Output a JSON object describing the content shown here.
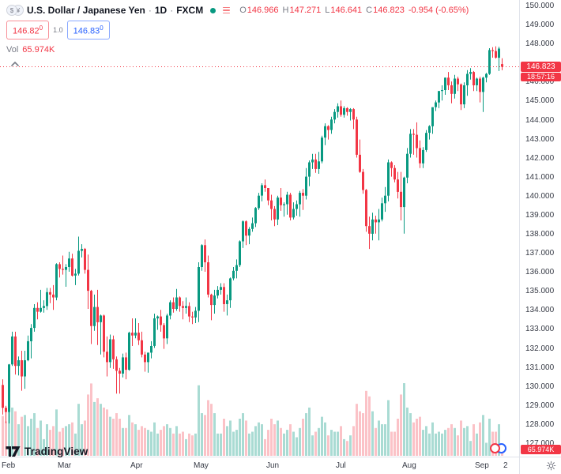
{
  "header": {
    "symbol_title": "U.S. Dollar / Japanese Yen",
    "sep1": "·",
    "timeframe": "1D",
    "sep2": "·",
    "exchange": "FXCM",
    "o_label": "O",
    "o_value": "146.966",
    "h_label": "H",
    "h_value": "147.271",
    "l_label": "L",
    "l_value": "146.641",
    "c_label": "C",
    "c_value": "146.823",
    "change": "-0.954 (-0.65%)",
    "bid": "146.82",
    "bid_sup": "0",
    "spread": "1.0",
    "ask": "146.83",
    "ask_sup": "0",
    "vol_label": "Vol",
    "vol_value": "65.974K"
  },
  "price_scale": {
    "last_price_label": "146.823",
    "countdown": "18:57:16",
    "volume_label": "65.974K"
  },
  "footer": {
    "brand": "TradingView",
    "right_edge_label": "2"
  },
  "colors": {
    "up": "#089981",
    "down": "#f23645",
    "vol_up": "rgba(8,153,129,0.35)",
    "vol_down": "rgba(242,54,69,0.30)",
    "accent_blue": "#2962ff",
    "axis_line": "#e0e3eb"
  },
  "chart_data": {
    "type": "candlestick",
    "title": "U.S. Dollar / Japanese Yen",
    "timeframe": "1D",
    "exchange": "FXCM",
    "grid": false,
    "legend_position": "top-left",
    "y_axis": {
      "min": 127,
      "max": 150,
      "step": 1,
      "tick_format": "x.000"
    },
    "x_ticks": [
      {
        "i": 0,
        "label": "Feb"
      },
      {
        "i": 20,
        "label": "Mar"
      },
      {
        "i": 43,
        "label": "Apr"
      },
      {
        "i": 63,
        "label": "May"
      },
      {
        "i": 86,
        "label": "Jun"
      },
      {
        "i": 108,
        "label": "Jul"
      },
      {
        "i": 129,
        "label": "Aug"
      },
      {
        "i": 152,
        "label": "Sep"
      },
      {
        "i": 161,
        "label": "2"
      }
    ],
    "last_price": 146.823,
    "prev_close": 147.777,
    "current_volume_k": 65.974,
    "ohlc_current": {
      "o": 146.966,
      "h": 147.271,
      "l": 146.641,
      "c": 146.823,
      "change": -0.954,
      "change_pct": -0.65
    },
    "candle_format": [
      "open",
      "high",
      "low",
      "close",
      "volume_k"
    ],
    "candles": [
      [
        130.1,
        130.4,
        128.55,
        128.9,
        215
      ],
      [
        128.9,
        129.0,
        128.1,
        128.68,
        185
      ],
      [
        128.68,
        131.2,
        128.08,
        131.18,
        340
      ],
      [
        131.18,
        132.9,
        131.1,
        132.65,
        260
      ],
      [
        132.65,
        132.9,
        130.65,
        131.1,
        240
      ],
      [
        131.1,
        131.6,
        130.6,
        131.4,
        170
      ],
      [
        131.4,
        131.9,
        129.8,
        130.55,
        210
      ],
      [
        130.55,
        131.9,
        129.9,
        131.4,
        220
      ],
      [
        131.4,
        132.7,
        131.35,
        132.4,
        160
      ],
      [
        132.4,
        133.3,
        131.5,
        133.1,
        200
      ],
      [
        133.1,
        134.35,
        132.9,
        134.15,
        230
      ],
      [
        134.15,
        134.45,
        133.55,
        133.95,
        150
      ],
      [
        133.95,
        135.1,
        133.9,
        134.15,
        190
      ],
      [
        134.15,
        134.55,
        133.9,
        134.25,
        90
      ],
      [
        134.25,
        135.2,
        134.05,
        134.98,
        170
      ],
      [
        134.98,
        135.2,
        134.4,
        134.85,
        140
      ],
      [
        134.85,
        135.35,
        134.05,
        134.7,
        160
      ],
      [
        134.7,
        136.5,
        134.55,
        136.45,
        250
      ],
      [
        136.45,
        136.55,
        135.75,
        136.2,
        130
      ],
      [
        136.2,
        136.9,
        135.9,
        136.15,
        150
      ],
      [
        136.15,
        136.45,
        135.26,
        136.3,
        160
      ],
      [
        136.3,
        137.1,
        136.05,
        136.75,
        170
      ],
      [
        136.75,
        137.0,
        135.8,
        135.85,
        180
      ],
      [
        135.85,
        136.2,
        135.35,
        135.95,
        120
      ],
      [
        135.95,
        137.9,
        135.85,
        137.15,
        280
      ],
      [
        137.15,
        137.5,
        136.8,
        137.25,
        170
      ],
      [
        137.25,
        137.3,
        135.95,
        136.15,
        190
      ],
      [
        136.15,
        136.95,
        134.1,
        135.05,
        330
      ],
      [
        135.05,
        135.1,
        132.25,
        133.2,
        390
      ],
      [
        133.2,
        134.85,
        132.95,
        134.2,
        290
      ],
      [
        134.2,
        135.1,
        132.2,
        133.4,
        310
      ],
      [
        133.4,
        133.8,
        131.7,
        133.75,
        280
      ],
      [
        133.75,
        133.8,
        131.55,
        131.85,
        260
      ],
      [
        131.85,
        132.65,
        130.55,
        131.3,
        250
      ],
      [
        131.3,
        132.75,
        131.0,
        132.5,
        210
      ],
      [
        132.5,
        132.7,
        130.95,
        131.45,
        200
      ],
      [
        131.45,
        131.6,
        129.65,
        130.85,
        230
      ],
      [
        130.85,
        131.0,
        129.65,
        130.7,
        200
      ],
      [
        130.7,
        131.75,
        130.5,
        131.55,
        150
      ],
      [
        131.55,
        131.8,
        130.4,
        130.9,
        150
      ],
      [
        130.9,
        132.9,
        130.85,
        132.85,
        220
      ],
      [
        132.85,
        133.6,
        132.15,
        132.7,
        180
      ],
      [
        132.7,
        133.6,
        132.55,
        132.85,
        170
      ],
      [
        132.85,
        133.35,
        132.2,
        132.45,
        140
      ],
      [
        132.45,
        132.9,
        131.55,
        131.7,
        160
      ],
      [
        131.7,
        131.85,
        130.8,
        131.3,
        150
      ],
      [
        131.3,
        131.8,
        130.75,
        131.8,
        140
      ],
      [
        131.8,
        132.4,
        131.5,
        132.15,
        130
      ],
      [
        132.15,
        133.85,
        132.05,
        133.6,
        180
      ],
      [
        133.6,
        133.75,
        133.0,
        133.7,
        120
      ],
      [
        133.7,
        134.05,
        132.9,
        133.25,
        140
      ],
      [
        133.25,
        133.35,
        132.0,
        132.55,
        160
      ],
      [
        132.55,
        133.85,
        132.25,
        133.75,
        170
      ],
      [
        133.75,
        134.55,
        133.55,
        134.45,
        150
      ],
      [
        134.45,
        134.7,
        133.9,
        134.1,
        120
      ],
      [
        134.1,
        135.15,
        134.0,
        134.7,
        160
      ],
      [
        134.7,
        134.75,
        133.95,
        134.25,
        120
      ],
      [
        134.25,
        134.5,
        133.55,
        134.15,
        130
      ],
      [
        134.15,
        134.7,
        133.85,
        134.25,
        90
      ],
      [
        134.25,
        134.45,
        133.4,
        133.7,
        120
      ],
      [
        133.7,
        133.95,
        133.3,
        133.65,
        110
      ],
      [
        133.65,
        134.2,
        133.35,
        134.0,
        120
      ],
      [
        134.0,
        136.55,
        133.4,
        136.3,
        380
      ],
      [
        136.3,
        137.5,
        136.1,
        137.45,
        230
      ],
      [
        137.45,
        137.75,
        136.05,
        136.55,
        220
      ],
      [
        136.55,
        136.9,
        134.7,
        134.85,
        300
      ],
      [
        134.85,
        134.9,
        133.5,
        134.3,
        280
      ],
      [
        134.3,
        135.1,
        133.85,
        134.8,
        230
      ],
      [
        134.8,
        135.3,
        134.65,
        135.1,
        120
      ],
      [
        135.1,
        135.45,
        134.85,
        135.25,
        120
      ],
      [
        135.25,
        135.45,
        133.95,
        134.35,
        200
      ],
      [
        134.35,
        134.85,
        133.75,
        134.55,
        160
      ],
      [
        134.55,
        135.75,
        134.15,
        135.7,
        190
      ],
      [
        135.7,
        136.3,
        135.6,
        136.1,
        130
      ],
      [
        136.1,
        136.7,
        135.7,
        136.4,
        140
      ],
      [
        136.4,
        137.7,
        136.3,
        137.65,
        200
      ],
      [
        137.65,
        138.75,
        137.3,
        138.7,
        230
      ],
      [
        138.7,
        138.75,
        137.45,
        137.95,
        190
      ],
      [
        137.95,
        138.4,
        137.5,
        138.3,
        120
      ],
      [
        138.3,
        138.9,
        138.15,
        138.6,
        130
      ],
      [
        138.6,
        139.45,
        138.4,
        139.4,
        160
      ],
      [
        139.4,
        140.2,
        139.3,
        140.05,
        180
      ],
      [
        140.05,
        140.7,
        139.75,
        140.6,
        170
      ],
      [
        140.6,
        140.9,
        140.25,
        140.45,
        90
      ],
      [
        140.45,
        140.45,
        139.55,
        139.8,
        140
      ],
      [
        139.8,
        140.1,
        138.75,
        139.35,
        200
      ],
      [
        139.35,
        139.5,
        138.45,
        138.8,
        170
      ],
      [
        138.8,
        140.05,
        138.5,
        139.95,
        190
      ],
      [
        139.95,
        140.45,
        139.25,
        139.55,
        150
      ],
      [
        139.55,
        139.7,
        138.95,
        139.6,
        120
      ],
      [
        139.6,
        140.25,
        139.05,
        140.1,
        140
      ],
      [
        140.1,
        140.2,
        138.75,
        138.9,
        170
      ],
      [
        138.9,
        139.7,
        138.8,
        139.35,
        130
      ],
      [
        139.35,
        139.8,
        139.0,
        139.6,
        100
      ],
      [
        139.6,
        140.3,
        138.95,
        140.2,
        150
      ],
      [
        140.2,
        140.4,
        139.3,
        140.05,
        200
      ],
      [
        140.05,
        141.5,
        139.85,
        141.05,
        230
      ],
      [
        141.05,
        141.9,
        140.55,
        141.8,
        260
      ],
      [
        141.8,
        142.25,
        141.45,
        141.95,
        110
      ],
      [
        141.95,
        142.25,
        141.25,
        141.45,
        130
      ],
      [
        141.45,
        142.35,
        141.2,
        141.85,
        150
      ],
      [
        141.85,
        143.2,
        141.75,
        143.1,
        210
      ],
      [
        143.1,
        143.85,
        142.7,
        143.7,
        180
      ],
      [
        143.7,
        143.75,
        143.0,
        143.5,
        110
      ],
      [
        143.5,
        144.2,
        143.3,
        144.05,
        140
      ],
      [
        144.05,
        144.6,
        143.85,
        144.45,
        130
      ],
      [
        144.45,
        144.9,
        144.15,
        144.75,
        130
      ],
      [
        144.75,
        145.05,
        144.2,
        144.3,
        160
      ],
      [
        144.3,
        144.75,
        144.15,
        144.65,
        90
      ],
      [
        144.65,
        144.7,
        144.25,
        144.45,
        80
      ],
      [
        144.45,
        144.65,
        144.0,
        144.6,
        110
      ],
      [
        144.6,
        144.65,
        143.55,
        144.05,
        160
      ],
      [
        144.05,
        144.2,
        142.05,
        142.2,
        280
      ],
      [
        142.2,
        143.0,
        141.25,
        141.3,
        240
      ],
      [
        141.3,
        141.45,
        140.15,
        140.35,
        230
      ],
      [
        140.35,
        140.4,
        138.15,
        138.45,
        350
      ],
      [
        138.45,
        138.95,
        137.25,
        138.05,
        320
      ],
      [
        138.05,
        139.15,
        137.7,
        138.8,
        240
      ],
      [
        138.8,
        139.0,
        138.05,
        138.65,
        150
      ],
      [
        138.65,
        139.35,
        137.7,
        138.8,
        190
      ],
      [
        138.8,
        139.95,
        138.7,
        139.65,
        170
      ],
      [
        139.65,
        140.5,
        139.2,
        140.05,
        170
      ],
      [
        140.05,
        141.95,
        139.75,
        141.8,
        300
      ],
      [
        141.8,
        141.85,
        141.05,
        141.5,
        130
      ],
      [
        141.5,
        141.65,
        140.75,
        140.9,
        130
      ],
      [
        140.9,
        141.3,
        139.9,
        140.25,
        200
      ],
      [
        140.25,
        141.3,
        138.75,
        139.45,
        330
      ],
      [
        139.45,
        141.05,
        138.05,
        141.0,
        400
      ],
      [
        141.0,
        142.55,
        140.7,
        142.25,
        260
      ],
      [
        142.25,
        143.55,
        142.05,
        143.3,
        230
      ],
      [
        143.3,
        143.55,
        142.2,
        143.25,
        180
      ],
      [
        143.25,
        143.9,
        142.05,
        142.55,
        200
      ],
      [
        142.55,
        142.95,
        141.5,
        141.75,
        210
      ],
      [
        141.75,
        142.6,
        141.5,
        142.45,
        140
      ],
      [
        142.45,
        143.5,
        142.35,
        143.35,
        160
      ],
      [
        143.35,
        143.75,
        143.0,
        143.7,
        120
      ],
      [
        143.7,
        144.7,
        143.3,
        144.7,
        180
      ],
      [
        144.7,
        145.05,
        144.5,
        144.95,
        120
      ],
      [
        144.95,
        145.55,
        144.65,
        145.55,
        130
      ],
      [
        145.55,
        145.85,
        145.05,
        145.6,
        120
      ],
      [
        145.6,
        146.25,
        145.35,
        146.25,
        140
      ],
      [
        146.25,
        146.55,
        145.6,
        145.85,
        150
      ],
      [
        145.85,
        146.05,
        144.9,
        145.4,
        170
      ],
      [
        145.4,
        146.4,
        145.15,
        146.2,
        150
      ],
      [
        146.2,
        146.3,
        145.55,
        145.9,
        110
      ],
      [
        145.9,
        145.95,
        144.55,
        144.85,
        190
      ],
      [
        144.85,
        146.0,
        144.65,
        145.85,
        150
      ],
      [
        145.85,
        146.65,
        145.3,
        146.45,
        160
      ],
      [
        146.45,
        146.75,
        146.15,
        146.55,
        80
      ],
      [
        146.55,
        146.6,
        145.55,
        145.85,
        170
      ],
      [
        145.85,
        146.25,
        145.55,
        146.2,
        120
      ],
      [
        146.2,
        146.3,
        144.95,
        145.5,
        180
      ],
      [
        145.5,
        146.3,
        144.45,
        146.25,
        220
      ],
      [
        146.25,
        146.5,
        146.0,
        146.45,
        70
      ],
      [
        146.45,
        147.8,
        146.4,
        147.7,
        200
      ],
      [
        147.7,
        147.85,
        147.3,
        147.65,
        130
      ],
      [
        147.65,
        147.9,
        147.25,
        147.3,
        130
      ],
      [
        147.3,
        147.87,
        146.6,
        147.78,
        170
      ],
      [
        146.966,
        147.271,
        146.641,
        146.823,
        65.974
      ]
    ]
  }
}
